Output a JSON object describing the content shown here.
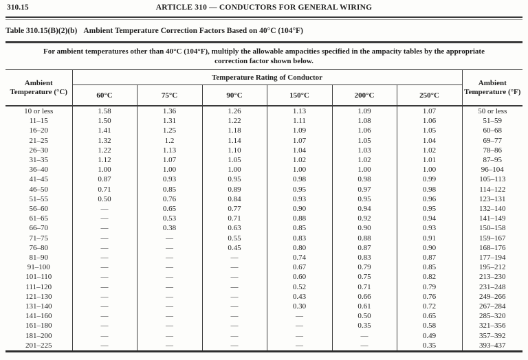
{
  "page_header": {
    "section_number": "310.15",
    "article_title": "ARTICLE 310 — CONDUCTORS FOR GENERAL WIRING"
  },
  "table_title": {
    "label": "Table 310.15(B)(2)(b)",
    "text": "Ambient Temperature Correction Factors Based on 40°C (104°F)"
  },
  "note": {
    "line1": "For ambient temperatures other than 40°C (104°F), multiply the allowable ampacities specified in the ampacity tables by the appropriate",
    "line2": "correction factor shown below."
  },
  "table": {
    "ambient_c_header": "Ambient Temperature (°C)",
    "span_header": "Temperature Rating of Conductor",
    "rating_headers": [
      "60°C",
      "75°C",
      "90°C",
      "150°C",
      "200°C",
      "250°C"
    ],
    "ambient_f_header": "Ambient Temperature (°F)",
    "rows": [
      [
        "10 or less",
        "1.58",
        "1.36",
        "1.26",
        "1.13",
        "1.09",
        "1.07",
        "50 or less"
      ],
      [
        "11–15",
        "1.50",
        "1.31",
        "1.22",
        "1.11",
        "1.08",
        "1.06",
        "51–59"
      ],
      [
        "16–20",
        "1.41",
        "1.25",
        "1.18",
        "1.09",
        "1.06",
        "1.05",
        "60–68"
      ],
      [
        "21–25",
        "1.32",
        "1.2",
        "1.14",
        "1.07",
        "1.05",
        "1.04",
        "69–77"
      ],
      [
        "26–30",
        "1.22",
        "1.13",
        "1.10",
        "1.04",
        "1.03",
        "1.02",
        "78–86"
      ],
      [
        "31–35",
        "1.12",
        "1.07",
        "1.05",
        "1.02",
        "1.02",
        "1.01",
        "87–95"
      ],
      [
        "36–40",
        "1.00",
        "1.00",
        "1.00",
        "1.00",
        "1.00",
        "1.00",
        "96–104"
      ],
      [
        "41–45",
        "0.87",
        "0.93",
        "0.95",
        "0.98",
        "0.98",
        "0.99",
        "105–113"
      ],
      [
        "46–50",
        "0.71",
        "0.85",
        "0.89",
        "0.95",
        "0.97",
        "0.98",
        "114–122"
      ],
      [
        "51–55",
        "0.50",
        "0.76",
        "0.84",
        "0.93",
        "0.95",
        "0.96",
        "123–131"
      ],
      [
        "56–60",
        "—",
        "0.65",
        "0.77",
        "0.90",
        "0.94",
        "0.95",
        "132–140"
      ],
      [
        "61–65",
        "—",
        "0.53",
        "0.71",
        "0.88",
        "0.92",
        "0.94",
        "141–149"
      ],
      [
        "66–70",
        "—",
        "0.38",
        "0.63",
        "0.85",
        "0.90",
        "0.93",
        "150–158"
      ],
      [
        "71–75",
        "—",
        "—",
        "0.55",
        "0.83",
        "0.88",
        "0.91",
        "159–167"
      ],
      [
        "76–80",
        "—",
        "—",
        "0.45",
        "0.80",
        "0.87",
        "0.90",
        "168–176"
      ],
      [
        "81–90",
        "—",
        "—",
        "—",
        "0.74",
        "0.83",
        "0.87",
        "177–194"
      ],
      [
        "91–100",
        "—",
        "—",
        "—",
        "0.67",
        "0.79",
        "0.85",
        "195–212"
      ],
      [
        "101–110",
        "—",
        "—",
        "—",
        "0.60",
        "0.75",
        "0.82",
        "213–230"
      ],
      [
        "111–120",
        "—",
        "—",
        "—",
        "0.52",
        "0.71",
        "0.79",
        "231–248"
      ],
      [
        "121–130",
        "—",
        "—",
        "—",
        "0.43",
        "0.66",
        "0.76",
        "249–266"
      ],
      [
        "131–140",
        "—",
        "—",
        "—",
        "0.30",
        "0.61",
        "0.72",
        "267–284"
      ],
      [
        "141–160",
        "—",
        "—",
        "—",
        "—",
        "0.50",
        "0.65",
        "285–320"
      ],
      [
        "161–180",
        "—",
        "—",
        "—",
        "—",
        "0.35",
        "0.58",
        "321–356"
      ],
      [
        "181–200",
        "—",
        "—",
        "—",
        "—",
        "—",
        "0.49",
        "357–392"
      ],
      [
        "201–225",
        "—",
        "—",
        "—",
        "—",
        "—",
        "0.35",
        "393–437"
      ]
    ]
  }
}
